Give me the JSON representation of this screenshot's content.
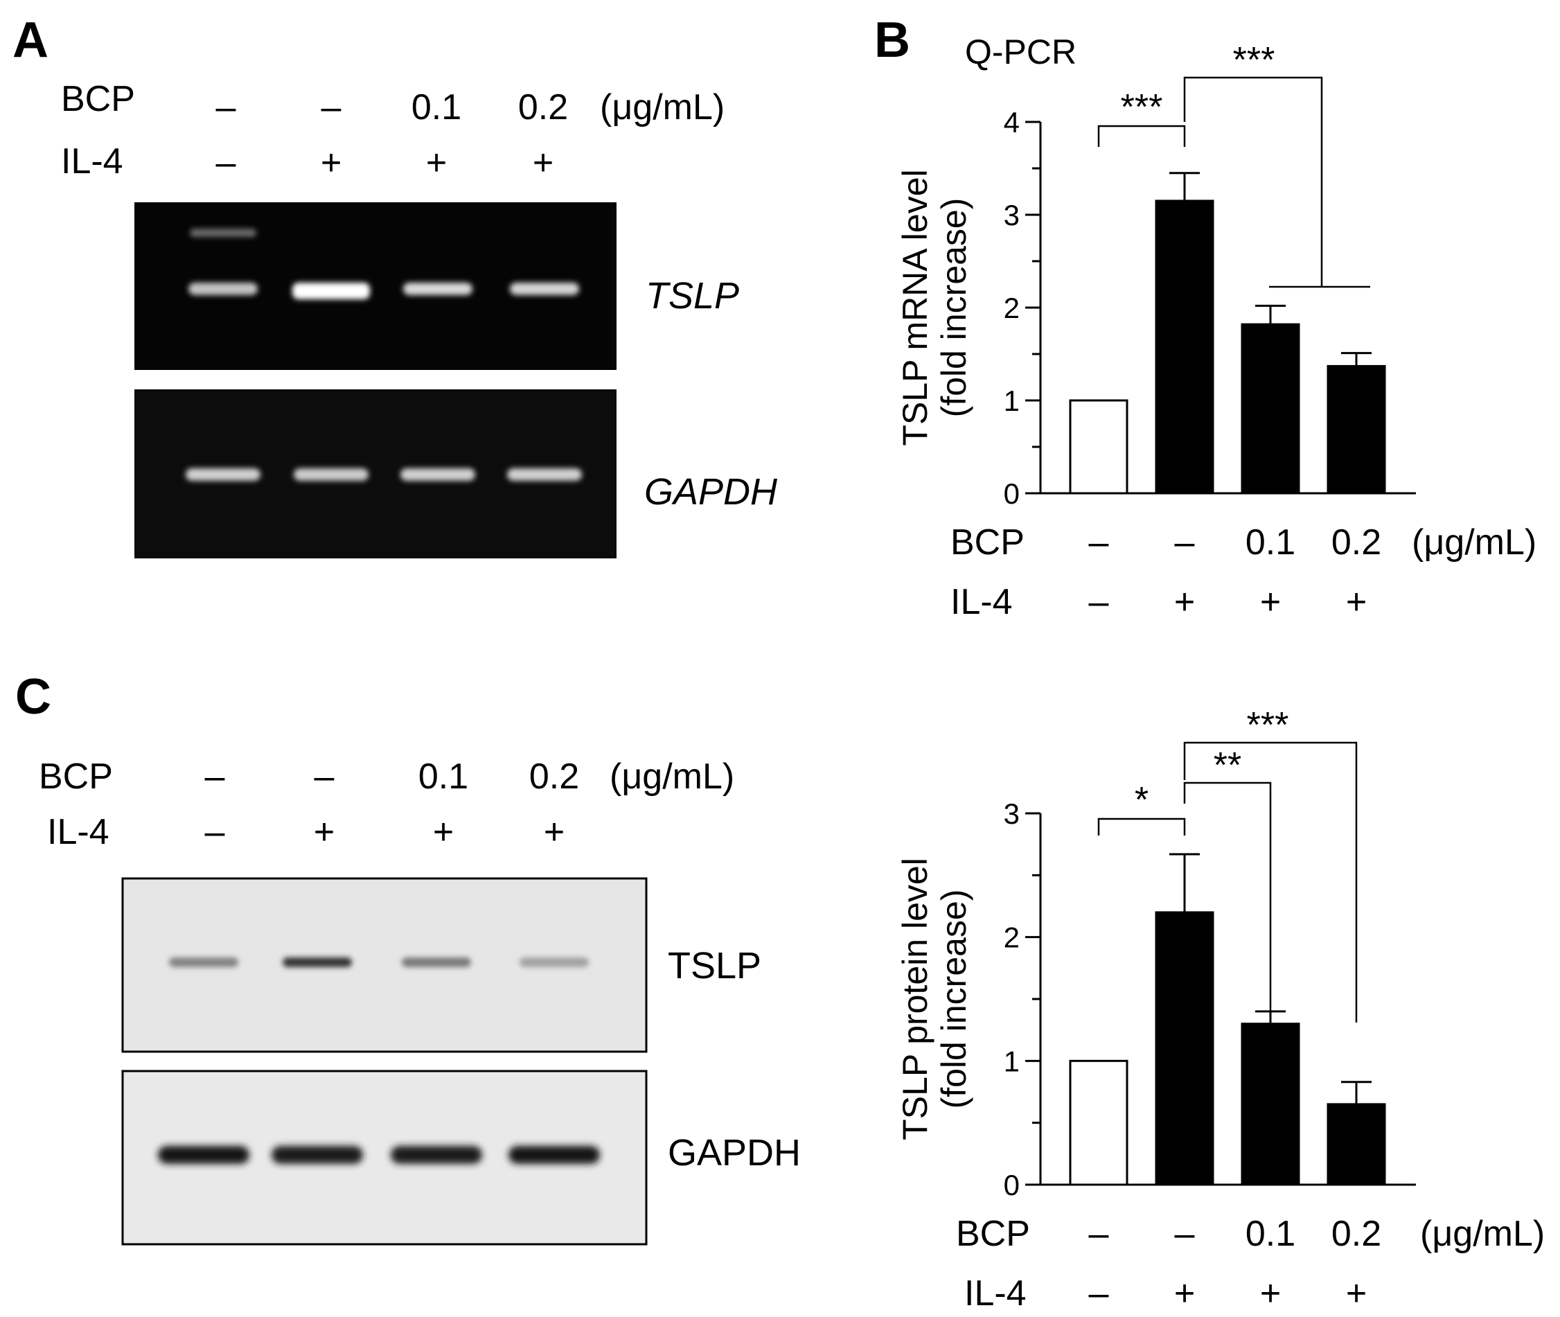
{
  "panels": {
    "A": {
      "letter": "A",
      "row_labels": {
        "bcp": "BCP",
        "il4": "IL-4",
        "unit": "(μg/mL)"
      },
      "bcp_values": [
        "–",
        "–",
        "0.1",
        "0.2"
      ],
      "il4_values": [
        "–",
        "+",
        "+",
        "+"
      ],
      "gel_top_label": "TSLP",
      "gel_bottom_label": "GAPDH",
      "tslp_band_intensity": [
        0.55,
        1.0,
        0.72,
        0.68
      ],
      "gapdh_band_intensity": [
        0.65,
        0.62,
        0.65,
        0.65
      ]
    },
    "B": {
      "letter": "B",
      "method_label": "Q-PCR",
      "row_labels": {
        "bcp": "BCP",
        "il4": "IL-4",
        "unit": "(μg/mL)"
      },
      "bcp_values": [
        "–",
        "–",
        "0.1",
        "0.2"
      ],
      "il4_values": [
        "–",
        "+",
        "+",
        "+"
      ],
      "sig_labels": [
        "***",
        "***"
      ]
    },
    "C": {
      "letter": "C",
      "row_labels": {
        "bcp": "BCP",
        "il4": "IL-4",
        "unit": "(μg/mL)"
      },
      "bcp_values": [
        "–",
        "–",
        "0.1",
        "0.2"
      ],
      "il4_values": [
        "–",
        "+",
        "+",
        "+"
      ],
      "blot_top_label": "TSLP",
      "blot_bottom_label": "GAPDH",
      "tslp_band_intensity": [
        0.45,
        0.85,
        0.5,
        0.3
      ],
      "gapdh_band_intensity": [
        0.95,
        0.92,
        0.92,
        0.95
      ],
      "chart_row_labels": {
        "bcp": "BCP",
        "il4": "IL-4",
        "unit": "(μg/mL)"
      },
      "chart_bcp_values": [
        "–",
        "–",
        "0.1",
        "0.2"
      ],
      "chart_il4_values": [
        "–",
        "+",
        "+",
        "+"
      ],
      "sig_labels": [
        "*",
        "**",
        "***"
      ]
    }
  },
  "chart_data": [
    {
      "type": "bar",
      "panel": "B",
      "title": "Q-PCR",
      "ylabel": "TSLP mRNA level (fold increase)",
      "ylim": [
        0,
        4
      ],
      "yticks": [
        0,
        1,
        2,
        3,
        4
      ],
      "categories": [
        "–/–",
        "–/+",
        "0.1/+",
        "0.2/+"
      ],
      "values": [
        1.0,
        3.15,
        1.82,
        1.37
      ],
      "errors": [
        0,
        0.3,
        0.2,
        0.14
      ],
      "bar_colors": [
        "#ffffff",
        "#000000",
        "#000000",
        "#000000"
      ],
      "significance": [
        {
          "from": 0,
          "to": [
            1
          ],
          "label": "***"
        },
        {
          "from": 1,
          "to": [
            2,
            3
          ],
          "label": "***"
        }
      ]
    },
    {
      "type": "bar",
      "panel": "C",
      "ylabel": "TSLP protein level (fold increase)",
      "ylim": [
        0,
        3
      ],
      "yticks": [
        0,
        1,
        2,
        3
      ],
      "categories": [
        "–/–",
        "–/+",
        "0.1/+",
        "0.2/+"
      ],
      "values": [
        1.0,
        2.2,
        1.3,
        0.65
      ],
      "errors": [
        0,
        0.47,
        0.1,
        0.18
      ],
      "bar_colors": [
        "#ffffff",
        "#000000",
        "#000000",
        "#000000"
      ],
      "significance": [
        {
          "from": 0,
          "to": [
            1
          ],
          "label": "*"
        },
        {
          "from": 1,
          "to": [
            2
          ],
          "label": "**"
        },
        {
          "from": 1,
          "to": [
            3
          ],
          "label": "***"
        }
      ]
    }
  ]
}
